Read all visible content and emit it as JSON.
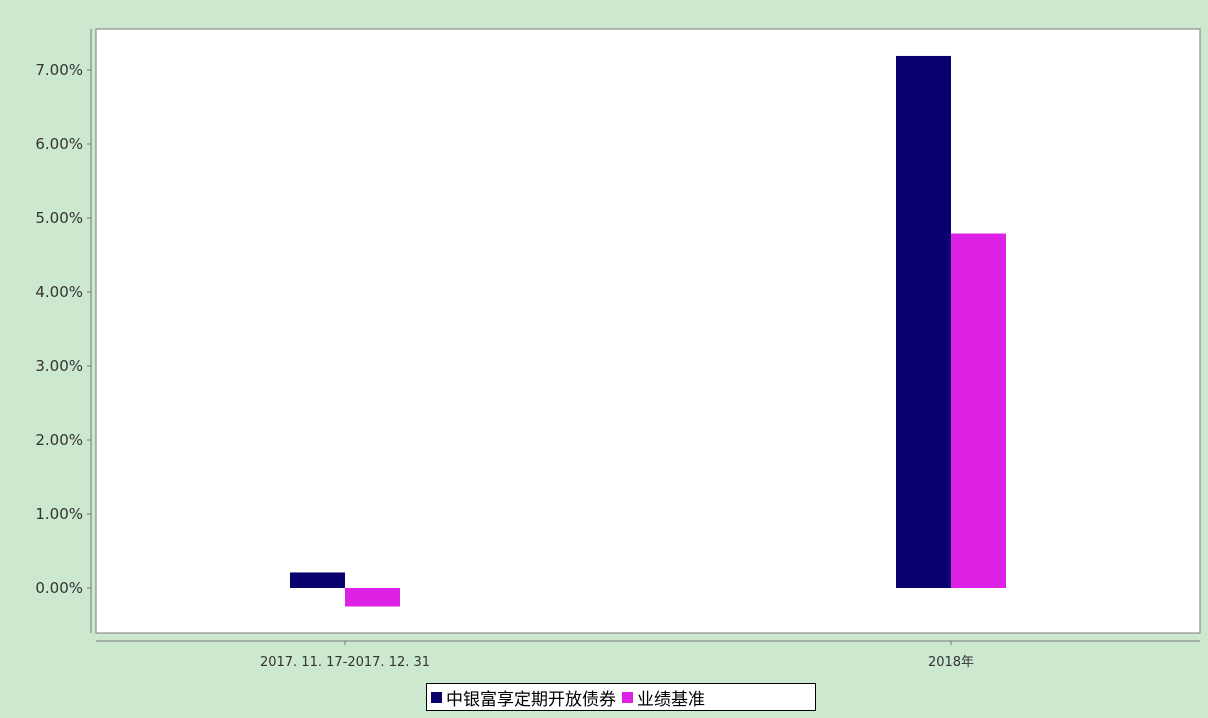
{
  "chart_data": {
    "type": "bar",
    "categories": [
      "2017. 11. 17-2017. 12. 31",
      "2018年"
    ],
    "series": [
      {
        "name": "中银富享定期开放债券",
        "values": [
          0.21,
          7.19
        ],
        "color": "#0a006e"
      },
      {
        "name": "业绩基准",
        "values": [
          -0.25,
          4.79
        ],
        "color": "#dd22e6"
      }
    ],
    "ylim": [
      -0.6,
      7.6
    ],
    "yticks": [
      0,
      1,
      2,
      3,
      4,
      5,
      6,
      7
    ],
    "ytick_labels": [
      "0.00%",
      "1.00%",
      "2.00%",
      "3.00%",
      "4.00%",
      "5.00%",
      "6.00%",
      "7.00%"
    ],
    "legend_position": "bottom-center",
    "grid": false,
    "title": "",
    "xlabel": "",
    "ylabel": ""
  }
}
